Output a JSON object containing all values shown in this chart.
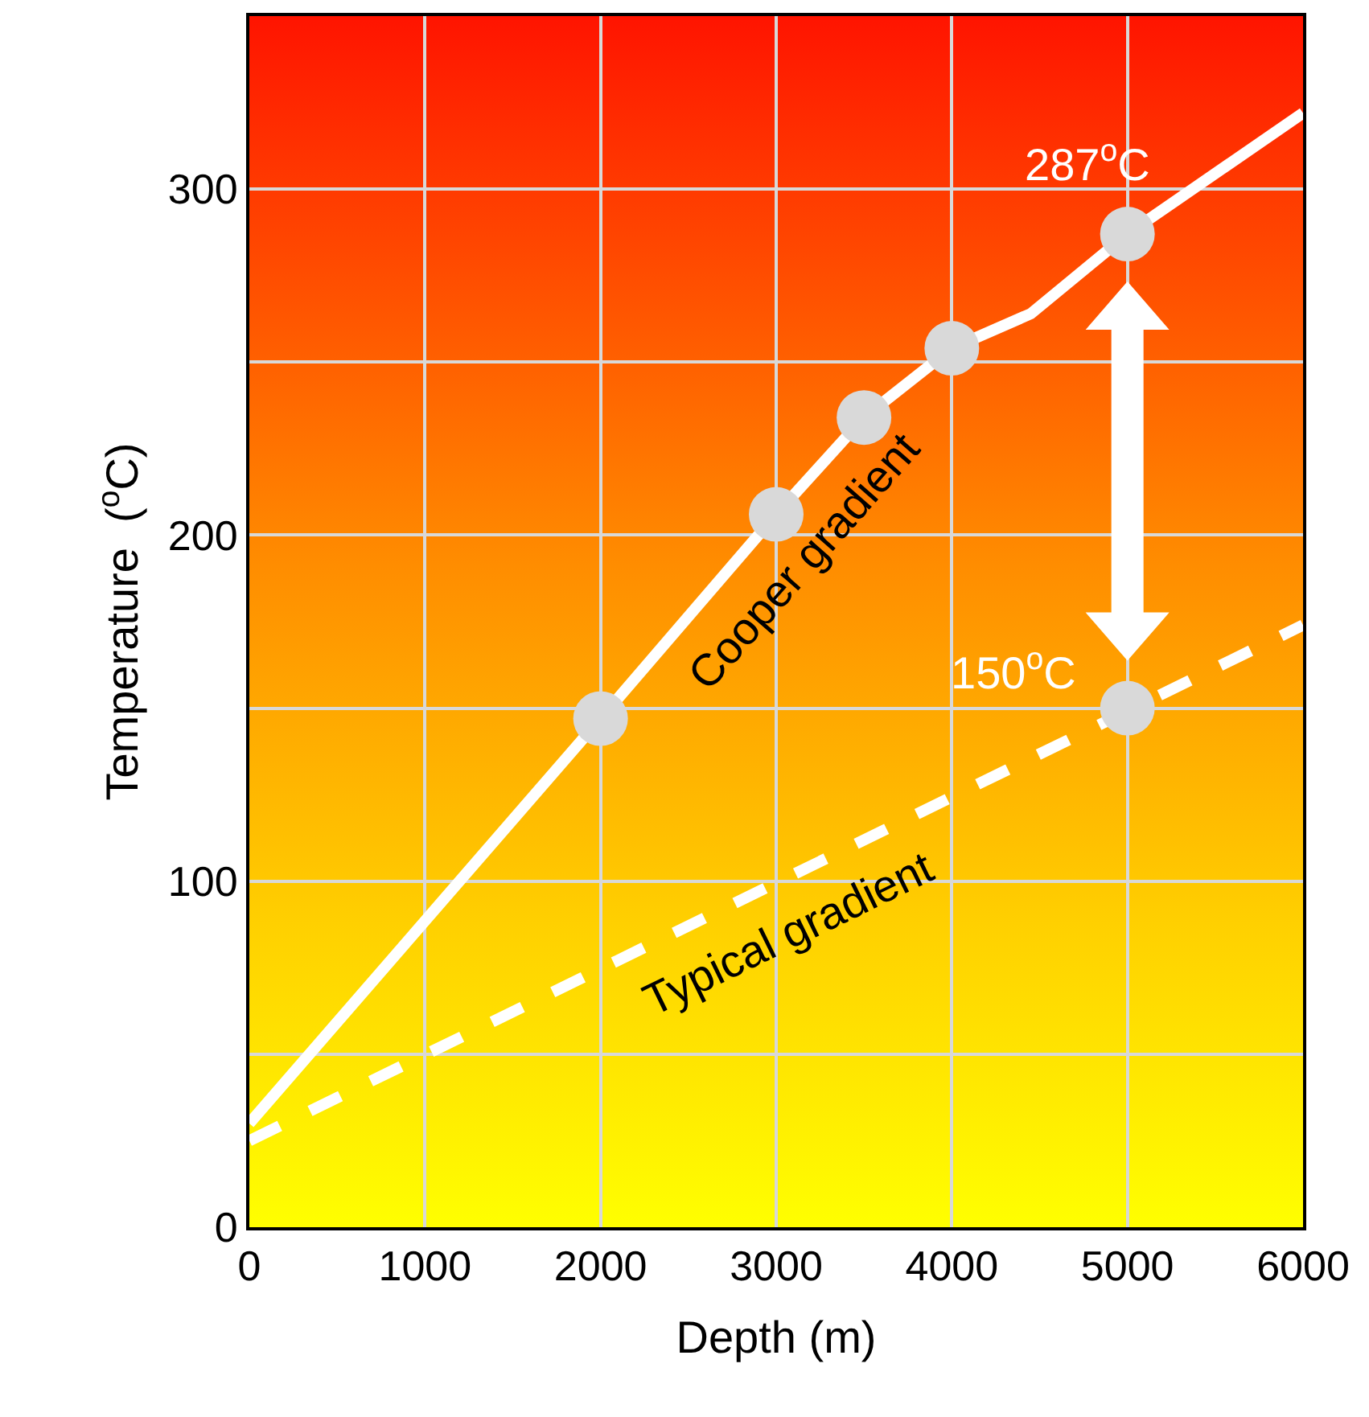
{
  "chart_data": {
    "type": "line",
    "xlabel": "Depth (m)",
    "ylabel": "Temperature  ($^{o}$C)",
    "xlim": [
      0,
      6000
    ],
    "xticks": [
      0,
      1000,
      2000,
      3000,
      4000,
      5000,
      6000
    ],
    "ylim": [
      0,
      350
    ],
    "yticks": [
      0,
      {
        "value": 50,
        "label": null
      },
      100,
      {
        "value": 150,
        "label": null
      },
      200,
      {
        "value": 250,
        "label": null
      },
      300,
      {
        "value": 350,
        "label": null
      }
    ],
    "grid": true,
    "legend": false,
    "series": [
      {
        "name": "Cooper gradient",
        "color": "#ffffff",
        "marker": "none",
        "line_style": "solid",
        "x": [
          0,
          2000,
          3000,
          3500,
          4000,
          4450,
          5000,
          6000
        ],
        "values": [
          30,
          147,
          206,
          234,
          254,
          264,
          287,
          322
        ]
      },
      {
        "type": "scatter",
        "marker": "circle",
        "color": "#d9d9d9",
        "x": [
          2000,
          3000,
          3500,
          4000,
          5000
        ],
        "values": [
          147,
          206,
          234,
          254,
          287
        ]
      },
      {
        "name": "Typical gradient",
        "color": "#ffffff",
        "marker": "none",
        "line_style": "dashed",
        "x": [
          0,
          6000
        ],
        "values": [
          25,
          174
        ]
      },
      {
        "type": "scatter",
        "marker": "circle",
        "color": "#d9d9d9",
        "x": [
          5000
        ],
        "values": [
          150
        ]
      }
    ],
    "annotations": [
      {
        "text": "287$^{o}$C",
        "x": 5000,
        "y": 287
      },
      {
        "text": "150$^{o}$C",
        "x": 5000,
        "y": 150
      }
    ]
  }
}
